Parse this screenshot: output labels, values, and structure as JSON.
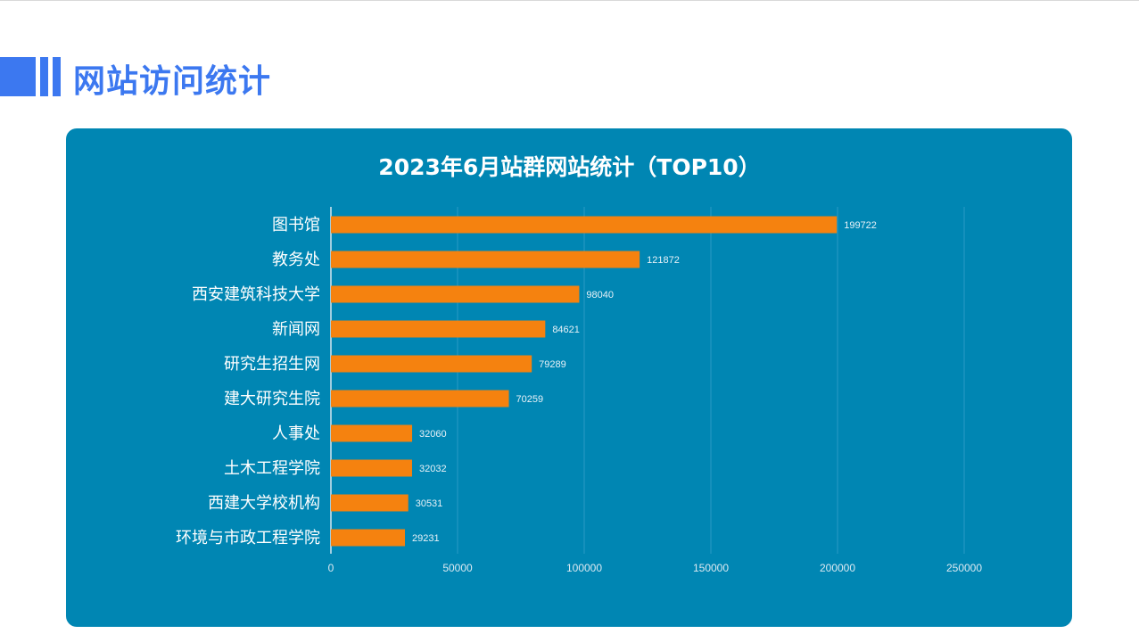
{
  "header": {
    "title": "网站访问统计"
  },
  "colors": {
    "accent": "#3c78f0",
    "panel": "#0086b3",
    "bar": "#f5820f"
  },
  "chart_data": {
    "type": "bar",
    "orientation": "horizontal",
    "title": "2023年6月站群网站统计（TOP10）",
    "categories": [
      "图书馆",
      "教务处",
      "西安建筑科技大学",
      "新闻网",
      "研究生招生网",
      "建大研究生院",
      "人事处",
      "土木工程学院",
      "西建大学校机构",
      "环境与市政工程学院"
    ],
    "values": [
      199722,
      121872,
      98040,
      84621,
      79289,
      70259,
      32060,
      32032,
      30531,
      29231
    ],
    "xlim": [
      0,
      250000
    ],
    "xticks": [
      0,
      50000,
      100000,
      150000,
      200000,
      250000
    ],
    "grid": true,
    "legend": "none"
  }
}
